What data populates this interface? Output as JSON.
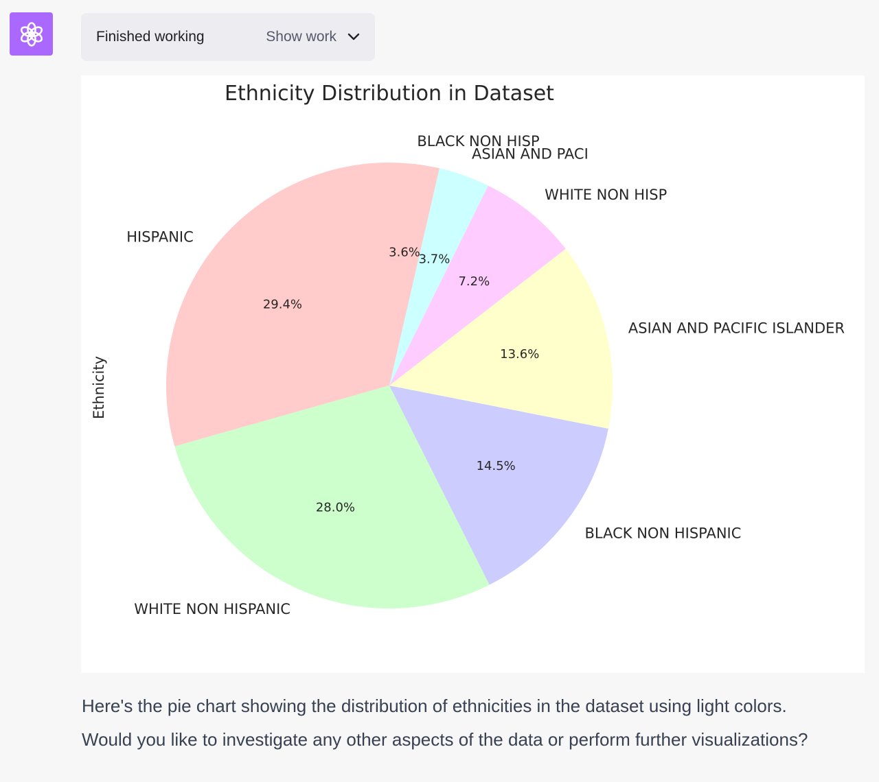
{
  "assistant": {
    "avatar_icon": "openai-logo-icon",
    "avatar_color": "#ab68ff"
  },
  "status": {
    "text": "Finished working",
    "show_work_label": "Show work",
    "toggle_icon": "chevron-down-icon"
  },
  "chart_data": {
    "type": "pie",
    "title": "Ethnicity Distribution in Dataset",
    "ylabel": "Ethnicity",
    "start_angle_deg": 90,
    "direction": "counterclockwise",
    "slices": [
      {
        "label": "HISPANIC",
        "value": 29.4,
        "pct_label": "29.4%",
        "color": "#ffcccb"
      },
      {
        "label": "WHITE NON HISPANIC",
        "value": 28.0,
        "pct_label": "28.0%",
        "color": "#ccffcc"
      },
      {
        "label": "BLACK NON HISPANIC",
        "value": 14.5,
        "pct_label": "14.5%",
        "color": "#ccccff"
      },
      {
        "label": "ASIAN AND PACIFIC ISLANDER",
        "value": 13.6,
        "pct_label": "13.6%",
        "color": "#ffffcc"
      },
      {
        "label": "WHITE NON HISP",
        "value": 7.2,
        "pct_label": "7.2%",
        "color": "#ffccff"
      },
      {
        "label": "ASIAN AND PACI",
        "value": 3.7,
        "pct_label": "3.7%",
        "color": "#ccffff"
      },
      {
        "label": "BLACK NON HISP",
        "value": 3.6,
        "pct_label": "3.6%",
        "color": "#ffcccb"
      }
    ]
  },
  "reply": {
    "line1": "Here's the pie chart showing the distribution of ethnicities in the dataset using light colors.",
    "line2": "Would you like to investigate any other aspects of the data or perform further visualizations?"
  }
}
